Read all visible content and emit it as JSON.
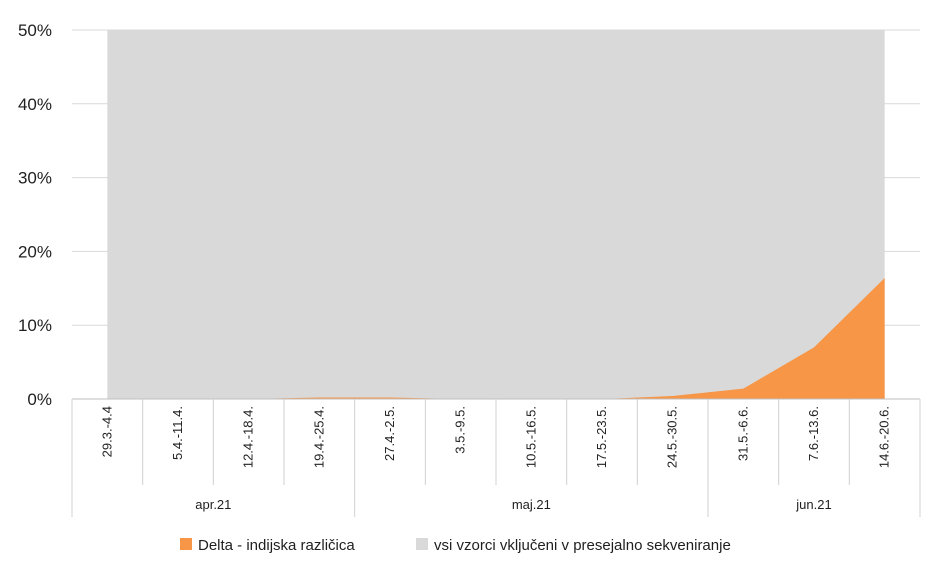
{
  "chart_data": {
    "type": "area",
    "categories": [
      "29.3.-4.4",
      "5.4.-11.4.",
      "12.4.-18.4.",
      "19.4.-25.4.",
      "27.4.-2.5.",
      "3.5.-9.5.",
      "10.5.-16.5.",
      "17.5.-23.5.",
      "24.5.-30.5.",
      "31.5.-6.6.",
      "7.6.-13.6.",
      "14.6.-20.6."
    ],
    "groups": [
      {
        "label": "apr.21",
        "count": 4
      },
      {
        "label": "maj.21",
        "count": 5
      },
      {
        "label": "jun.21",
        "count": 3
      }
    ],
    "series": [
      {
        "name": "Delta - indijska različica",
        "color": "#F79646",
        "values": [
          0,
          0,
          0,
          0.2,
          0.2,
          0,
          0,
          0,
          0.4,
          1.4,
          7.0,
          16.4
        ]
      },
      {
        "name": "vsi vzorci vključeni v presejalno sekveniranje",
        "color": "#D9D9D9",
        "values": [
          100,
          100,
          100,
          100,
          100,
          100,
          100,
          100,
          100,
          100,
          100,
          100
        ]
      }
    ],
    "y_ticks": [
      "0%",
      "10%",
      "20%",
      "30%",
      "40%",
      "50%"
    ],
    "ylim": [
      0,
      50
    ],
    "grid": true,
    "legend_position": "bottom"
  }
}
